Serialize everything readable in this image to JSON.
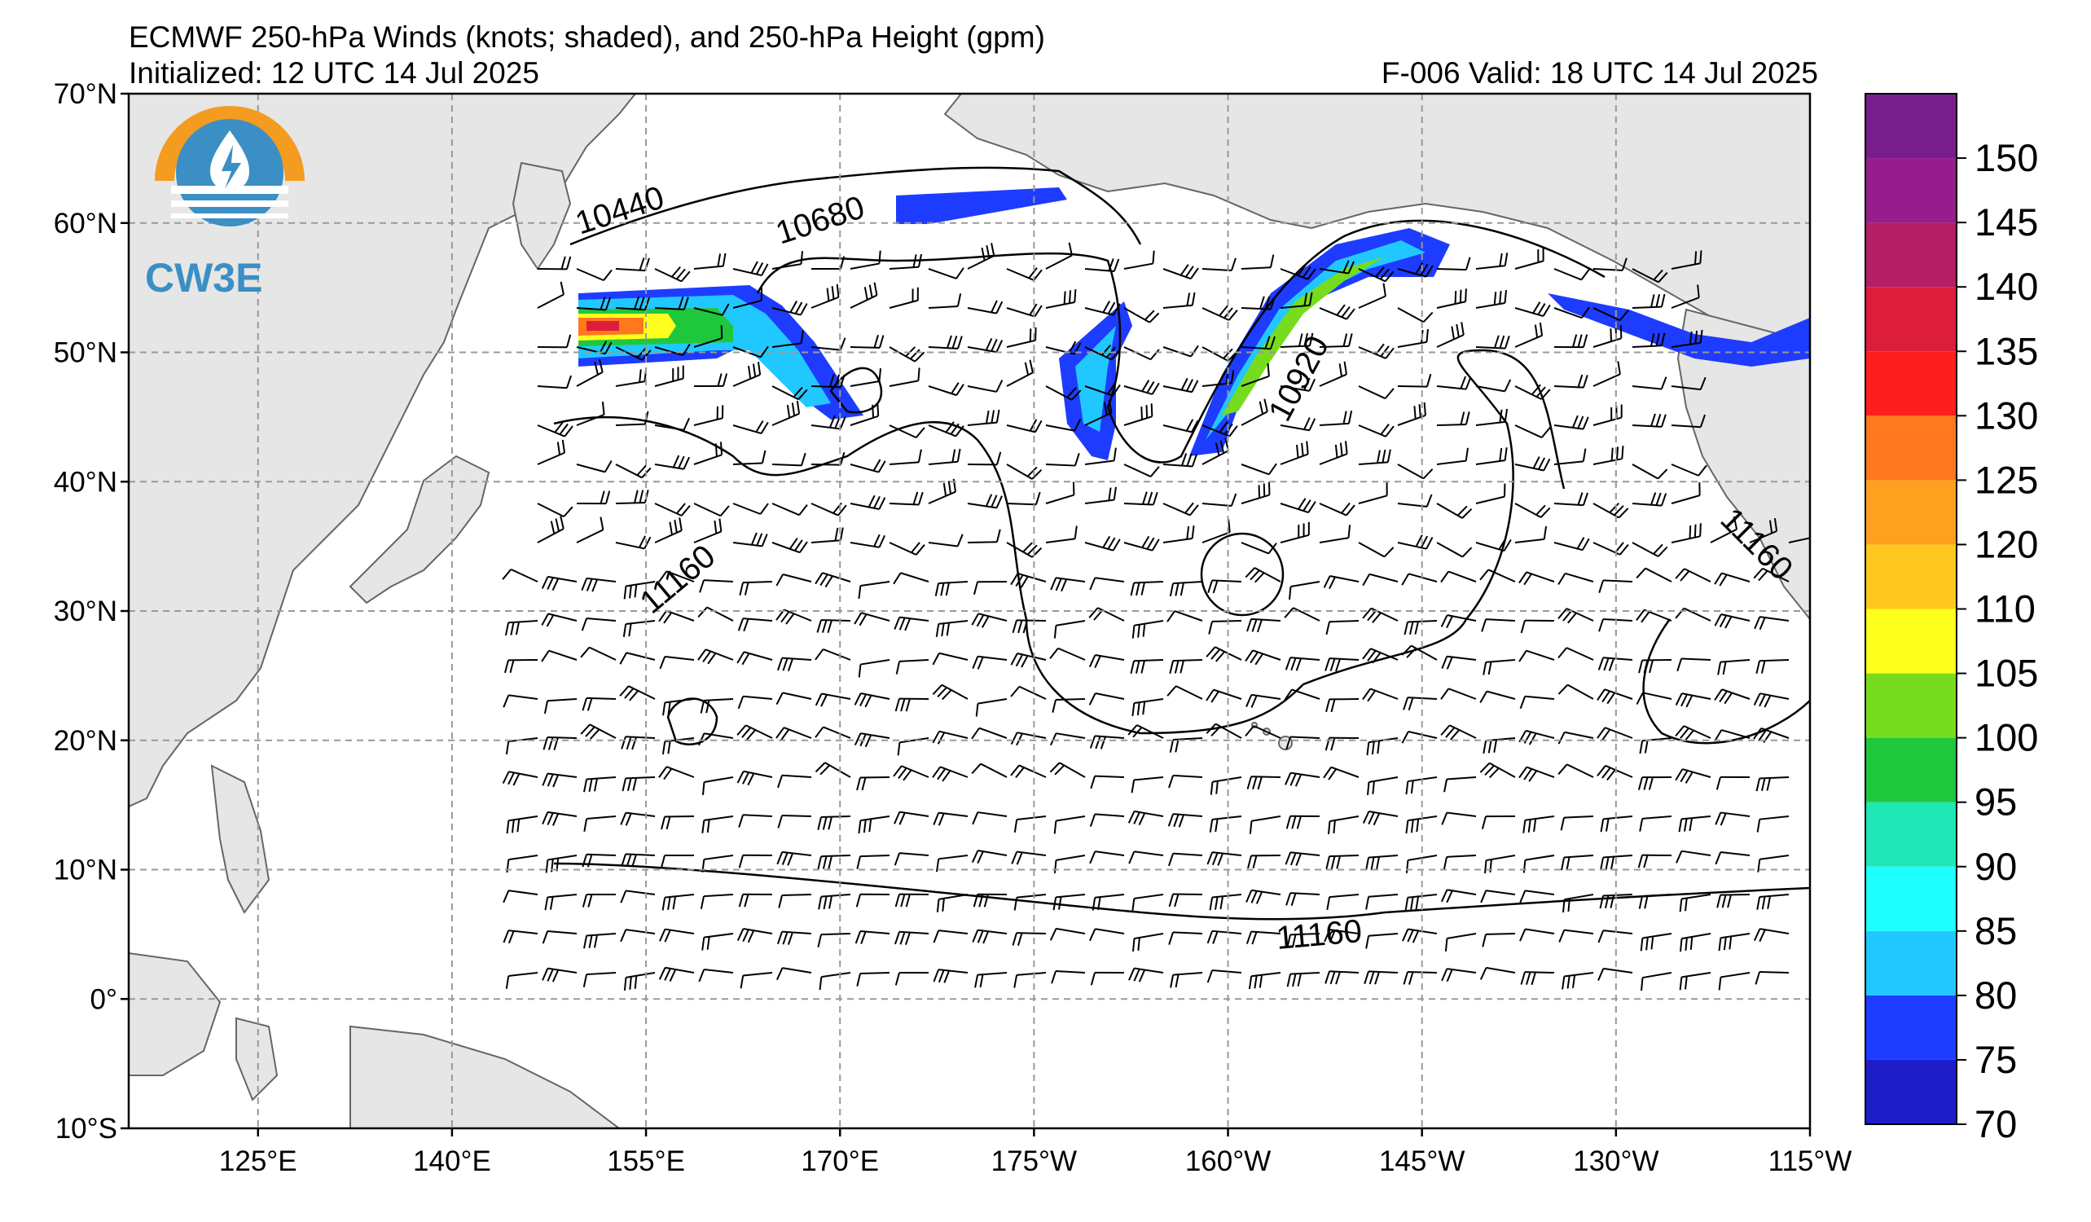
{
  "header": {
    "title": "ECMWF 250-hPa Winds (knots; shaded), and 250-hPa Height (gpm)",
    "initialized": "Initialized: 12 UTC 14 Jul 2025",
    "valid": "F-006  Valid: 18 UTC 14 Jul 2025"
  },
  "logo": {
    "text": "CW3E",
    "accent": "#f39c1f",
    "blue": "#3b8fc4"
  },
  "map": {
    "lat_range": [
      -10,
      70
    ],
    "lon_range_east": [
      115,
      245
    ],
    "lat_labels": [
      "70°N",
      "60°N",
      "50°N",
      "40°N",
      "30°N",
      "20°N",
      "10°N",
      "0°",
      "10°S"
    ],
    "lon_labels": [
      "125°E",
      "140°E",
      "155°E",
      "170°E",
      "175°W",
      "160°W",
      "145°W",
      "130°W",
      "115°W"
    ],
    "height_labels": [
      "10440",
      "10680",
      "10920",
      "11160",
      "11160",
      "11160"
    ],
    "land_color": "#e6e6e6",
    "grid_style": "dashed gray"
  },
  "colorbar": {
    "levels": [
      70,
      75,
      80,
      85,
      90,
      95,
      100,
      105,
      110,
      120,
      125,
      130,
      135,
      140,
      145,
      150
    ],
    "labels": [
      "150",
      "145",
      "140",
      "135",
      "130",
      "125",
      "120",
      "110",
      "105",
      "100",
      "95",
      "90",
      "85",
      "80",
      "75",
      "70"
    ],
    "colors": [
      "#1e1ec8",
      "#1e3cff",
      "#21c8ff",
      "#1effff",
      "#1ee6b4",
      "#1ec83c",
      "#78dc1e",
      "#ffff1e",
      "#ffc81e",
      "#ffa01e",
      "#ff781e",
      "#ff1e1e",
      "#dc1e3c",
      "#b41e64",
      "#961e8c",
      "#781e8c"
    ]
  }
}
